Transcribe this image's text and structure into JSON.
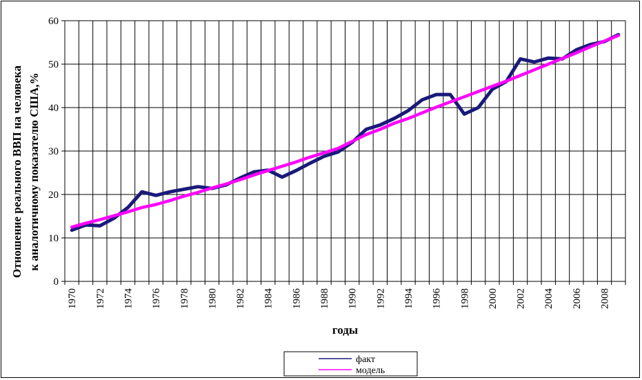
{
  "chart_data": {
    "type": "line",
    "title": "",
    "xlabel": "годы",
    "ylabel": "Отношение реального ВВП на человека к аналотичному показателю США,%",
    "ylim": [
      0,
      60
    ],
    "yticks": [
      0,
      10,
      20,
      30,
      40,
      50,
      60
    ],
    "x": [
      1970,
      1971,
      1972,
      1973,
      1974,
      1975,
      1976,
      1977,
      1978,
      1979,
      1980,
      1981,
      1982,
      1983,
      1984,
      1985,
      1986,
      1987,
      1988,
      1989,
      1990,
      1991,
      1992,
      1993,
      1994,
      1995,
      1996,
      1997,
      1998,
      1999,
      2000,
      2001,
      2002,
      2003,
      2004,
      2005,
      2006,
      2007,
      2008,
      2009
    ],
    "xtick_labels": [
      "1970",
      "1972",
      "1974",
      "1976",
      "1978",
      "1980",
      "1982",
      "1984",
      "1986",
      "1988",
      "1990",
      "1992",
      "1994",
      "1996",
      "1998",
      "2000",
      "2002",
      "2004",
      "2006",
      "2008"
    ],
    "grid": true,
    "legend_position": "bottom",
    "series": [
      {
        "name": "факт",
        "color": "#1a1a7a",
        "values": [
          11.8,
          13.0,
          12.8,
          14.5,
          17.0,
          20.6,
          19.8,
          20.6,
          21.2,
          21.8,
          21.4,
          22.2,
          23.8,
          25.2,
          25.6,
          24.0,
          25.5,
          27.2,
          28.8,
          29.8,
          32.0,
          35.0,
          36.0,
          37.5,
          39.3,
          41.8,
          43.0,
          43.0,
          38.5,
          40.0,
          44.2,
          46.0,
          51.2,
          50.5,
          51.4,
          51.2,
          53.3,
          54.5,
          55.2,
          56.8
        ]
      },
      {
        "name": "модель",
        "color": "#ff00ff",
        "values": [
          12.5,
          13.4,
          14.2,
          15.1,
          16.0,
          17.0,
          17.7,
          18.6,
          19.6,
          20.5,
          21.5,
          22.4,
          23.4,
          24.5,
          25.5,
          26.5,
          27.5,
          28.6,
          29.6,
          30.6,
          32.2,
          33.8,
          35.0,
          36.4,
          37.5,
          38.8,
          40.1,
          41.3,
          42.5,
          43.7,
          44.9,
          46.1,
          47.4,
          48.7,
          50.0,
          51.3,
          52.6,
          54.0,
          55.3,
          56.6
        ]
      }
    ]
  }
}
